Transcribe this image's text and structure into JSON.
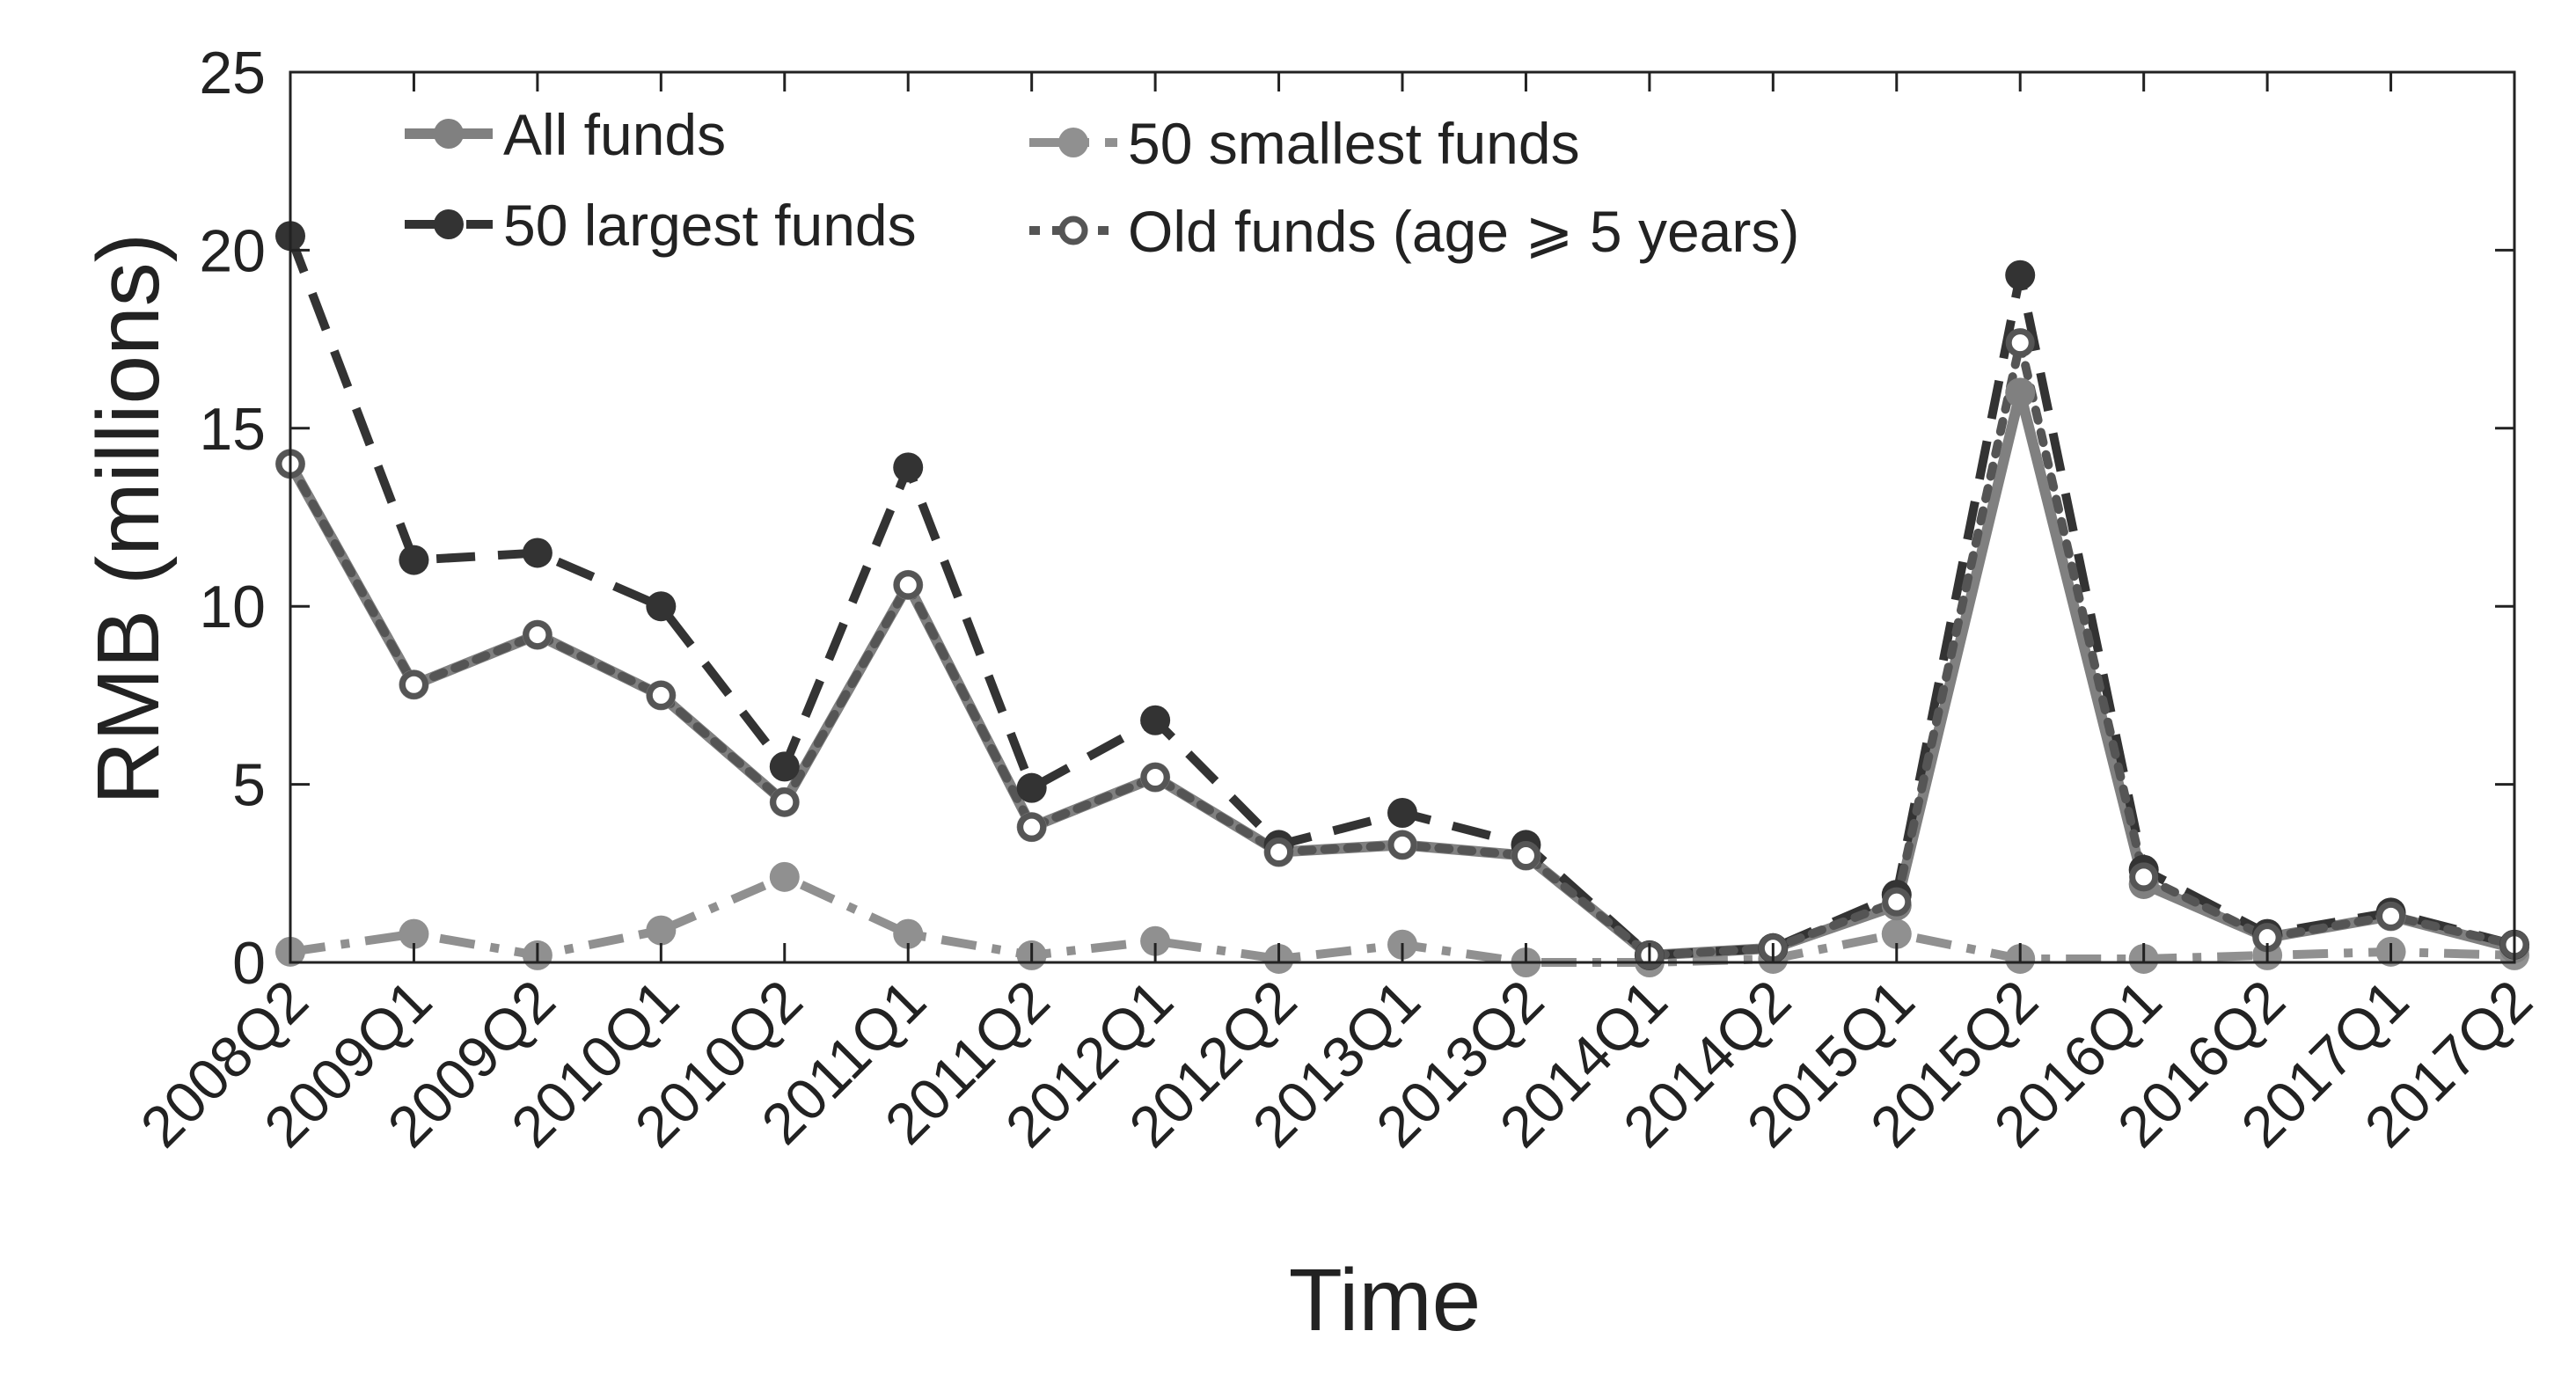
{
  "chart_data": {
    "type": "line",
    "title": "",
    "xlabel": "Time",
    "ylabel": "RMB (millions)",
    "ylim": [
      0,
      25
    ],
    "yticks": [
      0,
      5,
      10,
      15,
      20,
      25
    ],
    "grid": false,
    "legend_position": "top-left",
    "categories": [
      "2008Q2",
      "2009Q1",
      "2009Q2",
      "2010Q1",
      "2010Q2",
      "2011Q1",
      "2011Q2",
      "2012Q1",
      "2012Q2",
      "2013Q1",
      "2013Q2",
      "2014Q1",
      "2014Q2",
      "2015Q1",
      "2015Q2",
      "2016Q1",
      "2016Q2",
      "2017Q1",
      "2017Q2"
    ],
    "series": [
      {
        "name": "All funds",
        "style": "solid",
        "marker": "filled",
        "color": "#808080",
        "values": [
          14.0,
          7.8,
          9.2,
          7.5,
          4.5,
          10.6,
          3.8,
          5.2,
          3.1,
          3.3,
          3.0,
          0.2,
          0.4,
          1.6,
          16.0,
          2.2,
          0.7,
          1.3,
          0.4
        ]
      },
      {
        "name": "50 smallest funds",
        "style": "dashdot",
        "marker": "filled",
        "color": "#909090",
        "values": [
          0.3,
          0.8,
          0.2,
          0.9,
          2.4,
          0.8,
          0.2,
          0.6,
          0.1,
          0.5,
          0.0,
          0.0,
          0.1,
          0.8,
          0.1,
          0.1,
          0.2,
          0.3,
          0.2
        ]
      },
      {
        "name": "50 largest funds",
        "style": "dashed",
        "marker": "filled",
        "color": "#333333",
        "values": [
          20.4,
          11.3,
          11.5,
          10.0,
          5.5,
          13.9,
          4.9,
          6.8,
          3.3,
          4.2,
          3.3,
          0.2,
          0.4,
          1.9,
          19.3,
          2.6,
          0.8,
          1.4,
          0.5
        ]
      },
      {
        "name": "Old funds (age ⩾ 5 years)",
        "style": "dotted",
        "marker": "open",
        "color": "#555555",
        "values": [
          14.0,
          7.8,
          9.2,
          7.5,
          4.5,
          10.6,
          3.8,
          5.2,
          3.1,
          3.3,
          3.0,
          0.2,
          0.4,
          1.7,
          17.4,
          2.4,
          0.7,
          1.3,
          0.5
        ]
      }
    ]
  }
}
